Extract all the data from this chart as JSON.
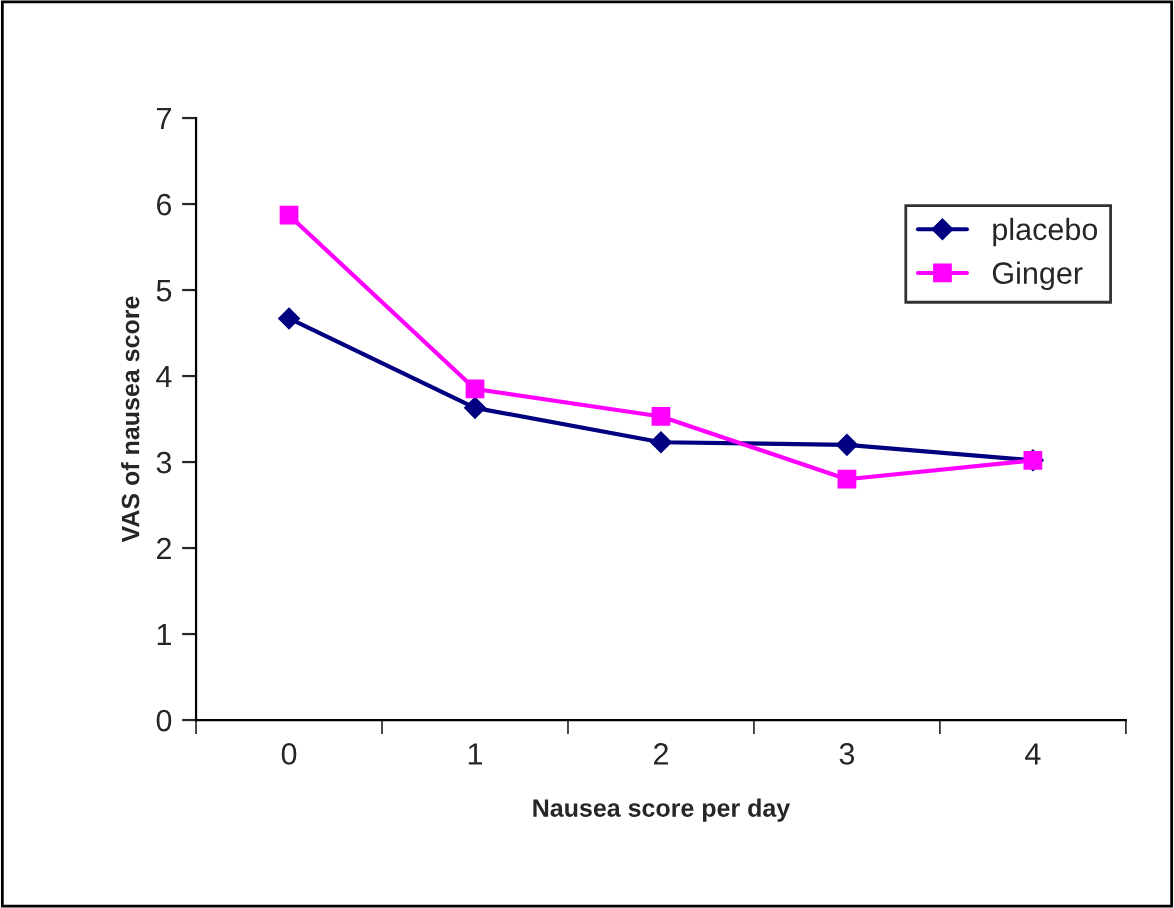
{
  "chart_data": {
    "type": "line",
    "xlabel": "Nausea score per day",
    "ylabel": "VAS of nausea score",
    "categories": [
      "0",
      "1",
      "2",
      "3",
      "4"
    ],
    "series": [
      {
        "name": "placebo",
        "color": "#000080",
        "marker": "diamond",
        "values": [
          4.67,
          3.63,
          3.23,
          3.2,
          3.02
        ]
      },
      {
        "name": "Ginger",
        "color": "#ff00ff",
        "marker": "square",
        "values": [
          5.87,
          3.85,
          3.53,
          2.8,
          3.02
        ]
      }
    ],
    "ylim": [
      0,
      7
    ],
    "yticks": [
      0,
      1,
      2,
      3,
      4,
      5,
      6,
      7
    ],
    "grid": false,
    "legend": "top right",
    "line_style": "solid"
  }
}
